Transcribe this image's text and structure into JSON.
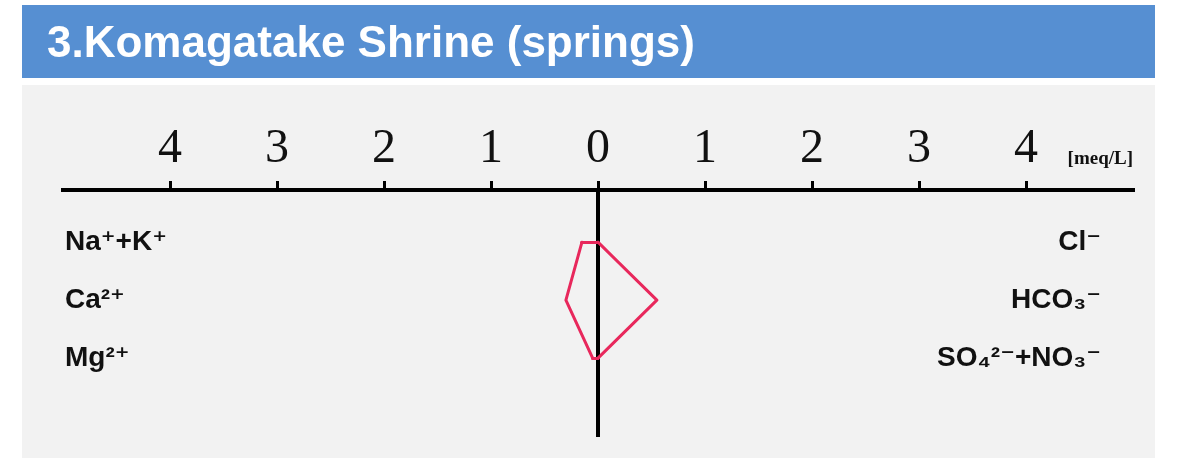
{
  "chart_data": {
    "type": "line",
    "orientation": "horizontal",
    "title": "3.Komagatake Shrine (springs)",
    "xlabel": "[meq/L]",
    "categories": [
      "Na⁺+K⁺",
      "Ca²⁺",
      "Mg²⁺"
    ],
    "y2_categories": [
      "Cl⁻",
      "HCO₃⁻",
      "SO₄²⁻+NO₃⁻"
    ],
    "xlim": [
      -5,
      5
    ],
    "xticks": [
      {
        "value": -4,
        "label": "4"
      },
      {
        "value": -3,
        "label": "3"
      },
      {
        "value": -2,
        "label": "2"
      },
      {
        "value": -1,
        "label": "1"
      },
      0,
      1,
      2,
      3,
      4
    ],
    "series": [
      {
        "color": "#e8285c",
        "values": [
          -0.15,
          -0.3,
          -0.05
        ]
      },
      {
        "color": "#e8285c",
        "values": [
          0,
          0.55,
          0
        ]
      }
    ],
    "ref_lines": [
      {
        "axis": "x",
        "value": 0,
        "color": "#000000"
      }
    ],
    "marker": "none",
    "line_style": "solid"
  }
}
